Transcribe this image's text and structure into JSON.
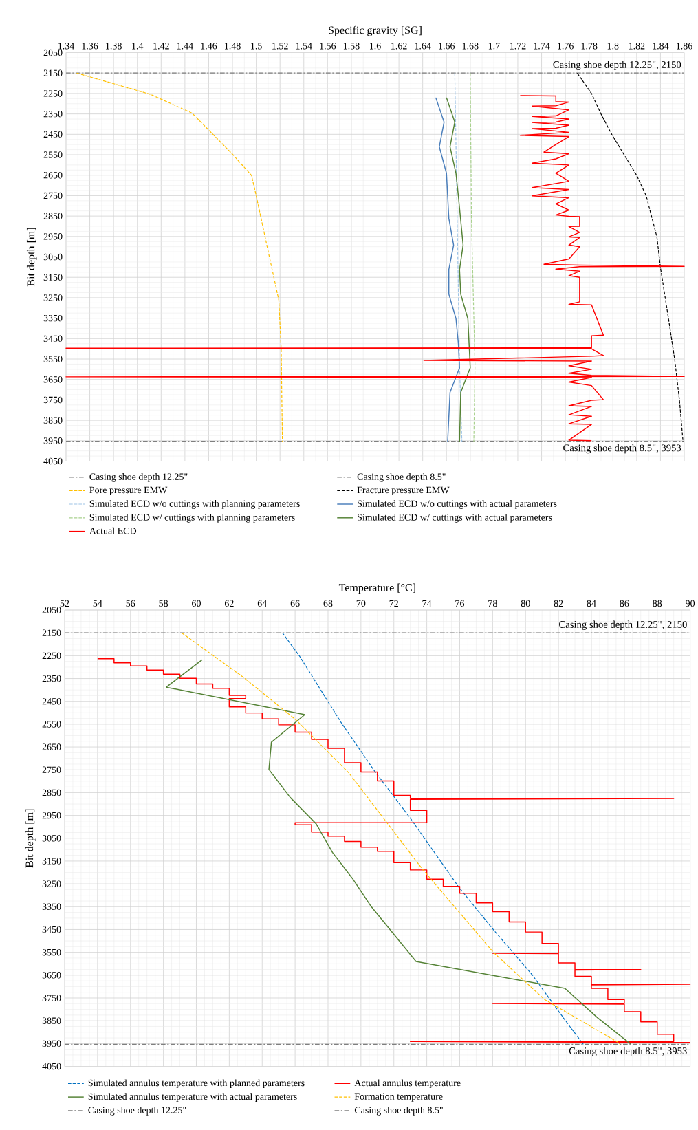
{
  "chart_data": [
    {
      "type": "line",
      "xlabel": "Specific gravity [SG]",
      "ylabel": "Bit depth [m]",
      "grid": true,
      "legend": "bottom",
      "xlim": [
        1.34,
        1.86
      ],
      "ylim": [
        4050,
        2050
      ],
      "xticks": [
        1.34,
        1.36,
        1.38,
        1.4,
        1.42,
        1.44,
        1.46,
        1.48,
        1.5,
        1.52,
        1.54,
        1.56,
        1.58,
        1.6,
        1.62,
        1.64,
        1.66,
        1.68,
        1.7,
        1.72,
        1.74,
        1.76,
        1.78,
        1.8,
        1.82,
        1.84,
        1.86
      ],
      "yticks": [
        2050,
        2150,
        2250,
        2350,
        2450,
        2550,
        2650,
        2750,
        2850,
        2950,
        3050,
        3150,
        3250,
        3350,
        3450,
        3550,
        3650,
        3750,
        3850,
        3950,
        4050
      ],
      "annotations": [
        {
          "text": "Casing shoe depth 12.25\", 2150",
          "y": 2150
        },
        {
          "text": "Casing shoe depth 8.5\", 3953",
          "y": 3953
        }
      ],
      "series": [
        {
          "name": "Casing shoe depth 12.25\"",
          "color": "#7f7f7f",
          "line_style": "dashdot",
          "x": [
            1.34,
            1.86
          ],
          "values": [
            2150,
            2150
          ]
        },
        {
          "name": "Casing shoe depth 8.5\"",
          "color": "#7f7f7f",
          "line_style": "dashdot",
          "x": [
            1.34,
            1.86
          ],
          "values": [
            3953,
            3953
          ]
        },
        {
          "name": "Pore pressure EMW",
          "color": "#ffc000",
          "line_style": "dashed",
          "x": [
            1.349,
            1.411,
            1.446,
            1.48,
            1.496,
            1.5,
            1.51,
            1.519,
            1.521,
            1.522
          ],
          "values": [
            2150,
            2254,
            2346,
            2547,
            2651,
            2751,
            3022,
            3262,
            3503,
            3955
          ]
        },
        {
          "name": "Fracture pressure EMW",
          "color": "#000000",
          "line_style": "dashed",
          "x": [
            1.77,
            1.782,
            1.79,
            1.799,
            1.82,
            1.828,
            1.837,
            1.84,
            1.847,
            1.852,
            1.856,
            1.859
          ],
          "values": [
            2150,
            2250,
            2350,
            2450,
            2651,
            2751,
            2952,
            3102,
            3362,
            3553,
            3753,
            3955
          ]
        },
        {
          "name": "Simulated ECD w/o cuttings with planning parameters",
          "color": "#9dc3e6",
          "line_style": "dashed",
          "x": [
            1.667,
            1.669,
            1.671,
            1.673
          ],
          "values": [
            2150,
            2861,
            3583,
            3955
          ]
        },
        {
          "name": "Simulated ECD w/o cuttings with actual parameters",
          "color": "#4a7ebb",
          "line_style": "solid",
          "x": [
            1.651,
            1.658,
            1.654,
            1.66,
            1.662,
            1.666,
            1.662,
            1.662,
            1.668,
            1.67,
            1.671,
            1.663,
            1.661
          ],
          "values": [
            2270,
            2390,
            2511,
            2641,
            2861,
            2992,
            3112,
            3232,
            3352,
            3473,
            3593,
            3713,
            3955
          ]
        },
        {
          "name": "Simulated ECD w/ cuttings with planning parameters",
          "color": "#a9d18e",
          "line_style": "dashed",
          "x": [
            1.68,
            1.681,
            1.684,
            1.683
          ],
          "values": [
            2150,
            2861,
            3583,
            3955
          ]
        },
        {
          "name": "Simulated ECD w/ cuttings with actual parameters",
          "color": "#548235",
          "line_style": "solid",
          "x": [
            1.66,
            1.667,
            1.663,
            1.668,
            1.67,
            1.674,
            1.671,
            1.672,
            1.678,
            1.679,
            1.68,
            1.672,
            1.671
          ],
          "values": [
            2270,
            2390,
            2511,
            2641,
            2751,
            2992,
            3112,
            3232,
            3352,
            3473,
            3593,
            3713,
            3955
          ]
        },
        {
          "name": "Actual ECD",
          "color": "#ff0000",
          "line_style": "solid",
          "x": [
            1.722,
            1.752,
            1.752,
            1.763,
            1.752,
            1.732,
            1.763,
            1.752,
            1.732,
            1.763,
            1.752,
            1.732,
            1.763,
            1.752,
            1.732,
            1.763,
            1.722,
            1.763,
            1.752,
            1.742,
            1.763,
            1.752,
            1.732,
            1.763,
            1.752,
            1.763,
            1.732,
            1.763,
            1.732,
            1.763,
            1.752,
            1.763,
            1.752,
            1.763,
            1.772,
            1.772,
            1.763,
            1.772,
            1.763,
            1.772,
            1.763,
            1.772,
            1.763,
            1.742,
            1.772,
            1.86,
            1.772,
            1.752,
            1.772,
            1.763,
            1.772,
            1.772,
            1.763,
            1.782,
            1.792,
            1.782,
            1.782,
            1.34,
            1.782,
            1.792,
            1.782,
            1.641,
            1.782,
            1.763,
            1.782,
            1.763,
            1.782,
            1.86,
            1.34,
            1.782,
            1.763,
            1.782,
            1.792,
            1.782,
            1.763,
            1.782,
            1.763,
            1.782,
            1.763,
            1.782,
            1.763,
            1.782
          ],
          "values": [
            2260,
            2262,
            2290,
            2292,
            2310,
            2312,
            2330,
            2360,
            2362,
            2375,
            2390,
            2392,
            2405,
            2420,
            2422,
            2440,
            2455,
            2461,
            2500,
            2537,
            2545,
            2570,
            2591,
            2600,
            2640,
            2680,
            2711,
            2720,
            2751,
            2760,
            2790,
            2821,
            2845,
            2851,
            2853,
            2900,
            2901,
            2930,
            2952,
            2955,
            2992,
            3000,
            3060,
            3086,
            3090,
            3096,
            3098,
            3110,
            3120,
            3142,
            3150,
            3270,
            3282,
            3285,
            3433,
            3436,
            3495,
            3497,
            3500,
            3533,
            3536,
            3557,
            3560,
            3583,
            3600,
            3620,
            3630,
            3635,
            3637,
            3640,
            3663,
            3680,
            3749,
            3752,
            3779,
            3782,
            3823,
            3830,
            3867,
            3870,
            3947,
            3950
          ]
        }
      ]
    },
    {
      "type": "line",
      "xlabel": "Temperature [°C]",
      "ylabel": "Bit depth [m]",
      "grid": true,
      "legend": "bottom",
      "xlim": [
        52,
        90
      ],
      "ylim": [
        4050,
        2050
      ],
      "xticks": [
        52,
        54,
        56,
        58,
        60,
        62,
        64,
        66,
        68,
        70,
        72,
        74,
        76,
        78,
        80,
        82,
        84,
        86,
        88,
        90
      ],
      "yticks": [
        2050,
        2150,
        2250,
        2350,
        2450,
        2550,
        2650,
        2750,
        2850,
        2950,
        3050,
        3150,
        3250,
        3350,
        3450,
        3550,
        3650,
        3750,
        3850,
        3950,
        4050
      ],
      "annotations": [
        {
          "text": "Casing shoe depth 12.25\", 2150",
          "y": 2150
        },
        {
          "text": "Casing shoe depth 8.5\", 3953",
          "y": 3953
        }
      ],
      "series": [
        {
          "name": "Simulated annulus temperature with planned parameters",
          "color": "#0070c0",
          "line_style": "dashed",
          "x": [
            65.23,
            66.29,
            68.77,
            70.87,
            72.98,
            75.95,
            78.06,
            80.41,
            82.39,
            83.51
          ],
          "values": [
            2150,
            2254,
            2540,
            2760,
            2960,
            3265,
            3452,
            3649,
            3846,
            3953
          ]
        },
        {
          "name": "Actual annulus temperature",
          "color": "#ff0000",
          "line_style": "solid",
          "x": [
            54,
            55,
            55,
            56,
            56,
            57,
            57,
            58,
            58,
            59,
            59,
            60,
            60,
            61,
            61,
            62,
            62,
            63,
            63,
            62,
            62,
            63,
            63,
            64,
            64,
            65,
            65,
            66,
            66,
            67,
            67,
            68,
            68,
            69,
            69,
            70,
            70,
            71,
            71,
            72,
            72,
            73,
            73,
            89,
            73,
            73,
            74,
            74,
            66,
            66,
            67,
            67,
            68,
            68,
            69,
            69,
            70,
            70,
            71,
            71,
            72,
            72,
            73,
            73,
            74,
            74,
            75,
            75,
            76,
            76,
            77,
            77,
            78,
            78,
            79,
            79,
            80,
            80,
            81,
            81,
            82,
            82,
            78,
            82,
            82,
            83,
            83,
            87,
            83,
            83,
            84,
            84,
            90,
            84,
            84,
            85,
            85,
            86,
            86,
            78,
            86,
            86,
            87,
            87,
            88,
            88,
            89,
            89,
            73,
            90
          ],
          "values": [
            2263,
            2263,
            2281,
            2281,
            2295,
            2295,
            2313,
            2313,
            2331,
            2331,
            2349,
            2349,
            2374,
            2374,
            2393,
            2393,
            2424,
            2424,
            2438,
            2438,
            2474,
            2474,
            2501,
            2501,
            2527,
            2527,
            2553,
            2553,
            2585,
            2585,
            2617,
            2617,
            2656,
            2656,
            2719,
            2719,
            2760,
            2760,
            2799,
            2799,
            2862,
            2862,
            2876,
            2876,
            2880,
            2928,
            2928,
            2982,
            2982,
            2991,
            2991,
            3023,
            3023,
            3041,
            3041,
            3064,
            3064,
            3089,
            3089,
            3107,
            3107,
            3157,
            3157,
            3189,
            3189,
            3229,
            3229,
            3261,
            3261,
            3291,
            3291,
            3333,
            3333,
            3372,
            3372,
            3417,
            3417,
            3461,
            3461,
            3511,
            3511,
            3554,
            3554,
            3556,
            3596,
            3596,
            3626,
            3626,
            3628,
            3655,
            3655,
            3690,
            3690,
            3693,
            3708,
            3708,
            3757,
            3757,
            3774,
            3774,
            3777,
            3810,
            3810,
            3855,
            3855,
            3909,
            3909,
            3941,
            3941,
            3945
          ]
        },
        {
          "name": "Simulated annulus temperature with actual parameters",
          "color": "#548235",
          "line_style": "solid",
          "x": [
            60.35,
            58.17,
            66.59,
            64.56,
            64.41,
            65.7,
            67.28,
            68.27,
            69.51,
            70.63,
            73.35,
            82.39,
            84.38,
            86.41
          ],
          "values": [
            2268,
            2388,
            2508,
            2629,
            2749,
            2871,
            2987,
            3112,
            3229,
            3350,
            3590,
            3708,
            3837,
            3953
          ]
        },
        {
          "name": "Formation temperature",
          "color": "#ffc000",
          "line_style": "dashed",
          "x": [
            59.11,
            62.83,
            66.05,
            69.27,
            73.72,
            78.06,
            81.16,
            85.61,
            85.74
          ],
          "values": [
            2150,
            2343,
            2531,
            2764,
            3184,
            3551,
            3757,
            3944,
            3953
          ]
        },
        {
          "name": "Casing shoe depth 12.25\"",
          "color": "#7f7f7f",
          "line_style": "dashdot",
          "x": [
            52,
            90
          ],
          "values": [
            2150,
            2150
          ]
        },
        {
          "name": "Casing shoe depth 8.5\"",
          "color": "#7f7f7f",
          "line_style": "dashdot",
          "x": [
            52,
            90
          ],
          "values": [
            3953,
            3953
          ]
        }
      ]
    }
  ]
}
